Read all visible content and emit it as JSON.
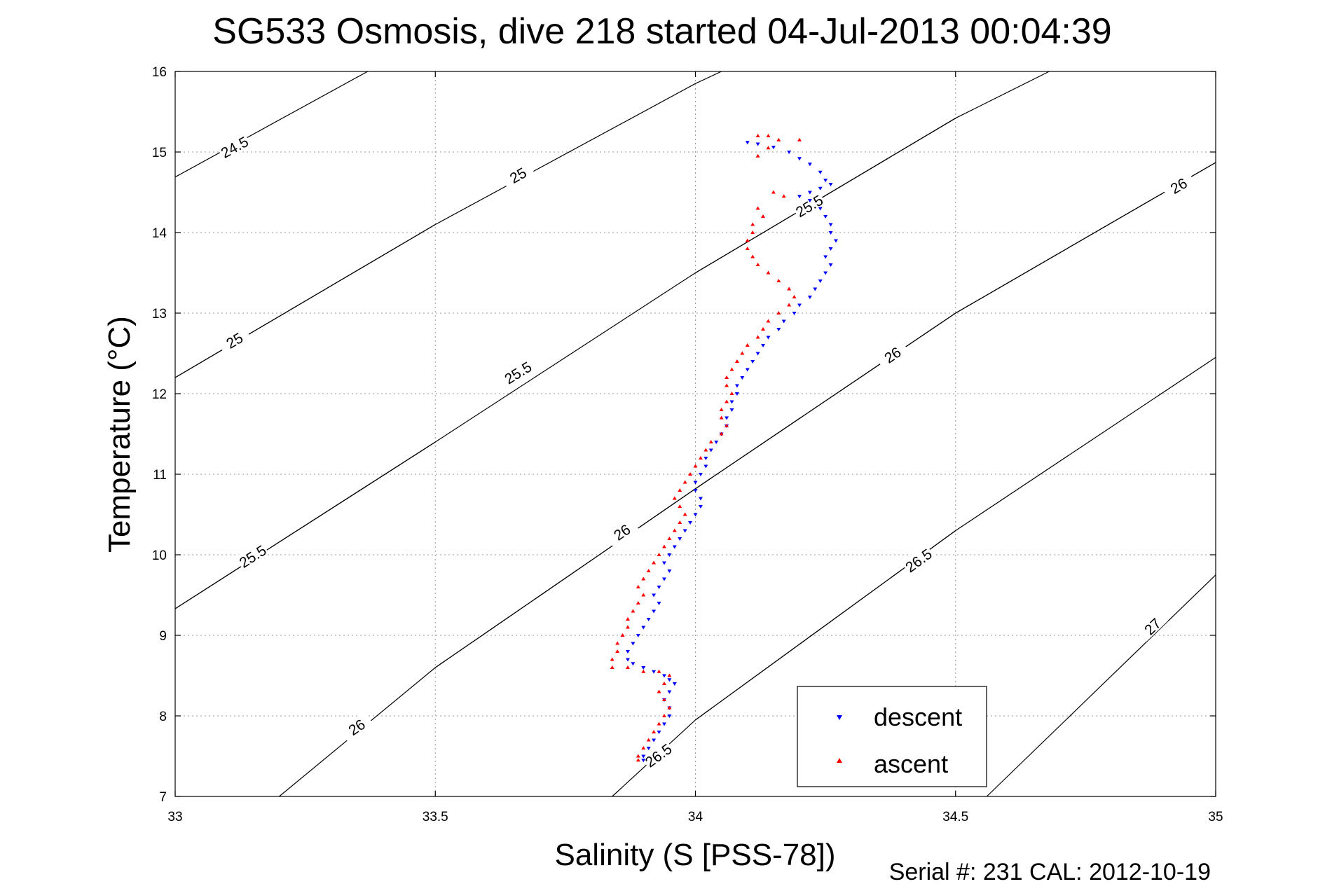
{
  "chart_data": {
    "type": "scatter",
    "title": "SG533 Osmosis, dive 218 started 04-Jul-2013 00:04:39",
    "xlabel": "Salinity (S [PSS-78])",
    "ylabel": "Temperature (°C)",
    "xlim": [
      33,
      35
    ],
    "ylim": [
      7,
      16
    ],
    "xticks": [
      "33",
      "33.5",
      "34",
      "34.5",
      "35"
    ],
    "yticks": [
      "7",
      "8",
      "9",
      "10",
      "11",
      "12",
      "13",
      "14",
      "15",
      "16"
    ],
    "grid": true,
    "legend_position": "bottom-right",
    "footer": "Serial #: 231  CAL: 2012-10-19",
    "contours": [
      {
        "label": "24.5",
        "points": [
          [
            33.0,
            14.69
          ],
          [
            33.37,
            16.0
          ]
        ],
        "label_at": [
          33.115,
          15.05
        ]
      },
      {
        "label": "25",
        "points": [
          [
            33.0,
            12.2
          ],
          [
            33.5,
            14.1
          ],
          [
            34.0,
            15.85
          ],
          [
            34.05,
            16.0
          ]
        ],
        "label_at": [
          33.66,
          14.7
        ]
      },
      {
        "label": "25",
        "points": [
          [
            33.0,
            12.2
          ],
          [
            33.5,
            14.1
          ]
        ],
        "label_at": [
          33.115,
          12.65
        ]
      },
      {
        "label": "25.5",
        "points": [
          [
            33.0,
            9.33
          ],
          [
            33.5,
            11.4
          ],
          [
            34.0,
            13.5
          ],
          [
            34.5,
            15.42
          ],
          [
            34.68,
            16.0
          ]
        ],
        "label_at": [
          33.66,
          12.25
        ]
      },
      {
        "label": "25.5",
        "points": [
          [
            33.0,
            9.33
          ],
          [
            33.5,
            11.4
          ]
        ],
        "label_at": [
          33.15,
          9.97
        ]
      },
      {
        "label": "25.5",
        "points": [
          [
            34.0,
            13.5
          ],
          [
            34.5,
            15.42
          ]
        ],
        "label_at": [
          34.22,
          14.32
        ]
      },
      {
        "label": "26",
        "points": [
          [
            33.2,
            7.0
          ],
          [
            33.5,
            8.6
          ],
          [
            34.0,
            10.82
          ],
          [
            34.5,
            13.0
          ],
          [
            35.0,
            14.87
          ]
        ],
        "label_at": [
          33.35,
          7.85
        ]
      },
      {
        "label": "26",
        "points": [
          [
            33.5,
            8.6
          ],
          [
            34.0,
            10.82
          ]
        ],
        "label_at": [
          33.86,
          10.27
        ]
      },
      {
        "label": "26",
        "points": [
          [
            34.0,
            10.82
          ],
          [
            34.5,
            13.0
          ]
        ],
        "label_at": [
          34.38,
          12.47
        ]
      },
      {
        "label": "26",
        "points": [
          [
            34.5,
            13.0
          ],
          [
            35.0,
            14.87
          ]
        ],
        "label_at": [
          34.93,
          14.57
        ]
      },
      {
        "label": "26.5",
        "points": [
          [
            33.84,
            7.0
          ],
          [
            34.0,
            7.95
          ],
          [
            34.5,
            10.3
          ],
          [
            35.0,
            12.45
          ]
        ],
        "label_at": [
          33.93,
          7.5
        ]
      },
      {
        "label": "26.5",
        "points": [
          [
            34.0,
            7.95
          ],
          [
            34.5,
            10.3
          ]
        ],
        "label_at": [
          34.43,
          9.92
        ]
      },
      {
        "label": "27",
        "points": [
          [
            34.56,
            7.0
          ],
          [
            35.0,
            9.75
          ]
        ],
        "label_at": [
          34.88,
          9.1
        ]
      }
    ],
    "series": [
      {
        "name": "descent",
        "color": "#0000ff",
        "marker": "triangle-down",
        "points": [
          [
            34.1,
            15.12
          ],
          [
            34.12,
            15.1
          ],
          [
            34.15,
            15.06
          ],
          [
            34.18,
            15.0
          ],
          [
            34.2,
            14.92
          ],
          [
            34.22,
            14.85
          ],
          [
            34.24,
            14.75
          ],
          [
            34.25,
            14.65
          ],
          [
            34.26,
            14.6
          ],
          [
            34.24,
            14.55
          ],
          [
            34.22,
            14.5
          ],
          [
            34.2,
            14.45
          ],
          [
            34.22,
            14.4
          ],
          [
            34.24,
            14.3
          ],
          [
            34.25,
            14.2
          ],
          [
            34.26,
            14.1
          ],
          [
            34.26,
            14.0
          ],
          [
            34.27,
            13.9
          ],
          [
            34.26,
            13.8
          ],
          [
            34.25,
            13.7
          ],
          [
            34.26,
            13.6
          ],
          [
            34.25,
            13.5
          ],
          [
            34.24,
            13.4
          ],
          [
            34.23,
            13.3
          ],
          [
            34.22,
            13.2
          ],
          [
            34.2,
            13.1
          ],
          [
            34.19,
            13.0
          ],
          [
            34.17,
            12.9
          ],
          [
            34.16,
            12.8
          ],
          [
            34.14,
            12.7
          ],
          [
            34.13,
            12.6
          ],
          [
            34.12,
            12.5
          ],
          [
            34.11,
            12.4
          ],
          [
            34.1,
            12.3
          ],
          [
            34.09,
            12.2
          ],
          [
            34.08,
            12.1
          ],
          [
            34.08,
            12.0
          ],
          [
            34.07,
            11.9
          ],
          [
            34.07,
            11.8
          ],
          [
            34.06,
            11.7
          ],
          [
            34.06,
            11.6
          ],
          [
            34.05,
            11.5
          ],
          [
            34.04,
            11.4
          ],
          [
            34.03,
            11.3
          ],
          [
            34.02,
            11.2
          ],
          [
            34.02,
            11.1
          ],
          [
            34.01,
            11.0
          ],
          [
            34.0,
            10.9
          ],
          [
            34.0,
            10.8
          ],
          [
            34.01,
            10.7
          ],
          [
            34.01,
            10.6
          ],
          [
            34.0,
            10.5
          ],
          [
            33.99,
            10.4
          ],
          [
            33.98,
            10.3
          ],
          [
            33.97,
            10.2
          ],
          [
            33.96,
            10.1
          ],
          [
            33.95,
            10.0
          ],
          [
            33.94,
            9.9
          ],
          [
            33.95,
            9.8
          ],
          [
            33.94,
            9.7
          ],
          [
            33.93,
            9.6
          ],
          [
            33.92,
            9.5
          ],
          [
            33.93,
            9.4
          ],
          [
            33.92,
            9.3
          ],
          [
            33.91,
            9.2
          ],
          [
            33.9,
            9.1
          ],
          [
            33.89,
            9.0
          ],
          [
            33.88,
            8.9
          ],
          [
            33.87,
            8.8
          ],
          [
            33.87,
            8.7
          ],
          [
            33.88,
            8.65
          ],
          [
            33.9,
            8.6
          ],
          [
            33.92,
            8.55
          ],
          [
            33.94,
            8.5
          ],
          [
            33.95,
            8.45
          ],
          [
            33.96,
            8.4
          ],
          [
            33.95,
            8.3
          ],
          [
            33.94,
            8.2
          ],
          [
            33.95,
            8.1
          ],
          [
            33.95,
            8.0
          ],
          [
            33.94,
            7.9
          ],
          [
            33.93,
            7.8
          ],
          [
            33.92,
            7.7
          ],
          [
            33.91,
            7.6
          ],
          [
            33.9,
            7.5
          ],
          [
            33.9,
            7.45
          ]
        ]
      },
      {
        "name": "ascent",
        "color": "#ff0000",
        "marker": "triangle-up",
        "points": [
          [
            34.12,
            15.2
          ],
          [
            34.14,
            15.2
          ],
          [
            34.16,
            15.15
          ],
          [
            34.2,
            15.15
          ],
          [
            34.14,
            15.05
          ],
          [
            34.12,
            14.95
          ],
          [
            34.15,
            14.5
          ],
          [
            34.17,
            14.45
          ],
          [
            34.12,
            14.3
          ],
          [
            34.13,
            14.2
          ],
          [
            34.11,
            14.1
          ],
          [
            34.11,
            14.0
          ],
          [
            34.1,
            13.9
          ],
          [
            34.1,
            13.8
          ],
          [
            34.11,
            13.7
          ],
          [
            34.12,
            13.6
          ],
          [
            34.14,
            13.5
          ],
          [
            34.16,
            13.4
          ],
          [
            34.18,
            13.3
          ],
          [
            34.19,
            13.2
          ],
          [
            34.18,
            13.1
          ],
          [
            34.16,
            13.0
          ],
          [
            34.14,
            12.9
          ],
          [
            34.13,
            12.8
          ],
          [
            34.12,
            12.7
          ],
          [
            34.1,
            12.6
          ],
          [
            34.09,
            12.5
          ],
          [
            34.08,
            12.4
          ],
          [
            34.07,
            12.3
          ],
          [
            34.06,
            12.2
          ],
          [
            34.06,
            12.1
          ],
          [
            34.07,
            12.0
          ],
          [
            34.06,
            11.9
          ],
          [
            34.05,
            11.8
          ],
          [
            34.05,
            11.7
          ],
          [
            34.06,
            11.6
          ],
          [
            34.05,
            11.5
          ],
          [
            34.03,
            11.4
          ],
          [
            34.02,
            11.3
          ],
          [
            34.01,
            11.2
          ],
          [
            34.0,
            11.1
          ],
          [
            33.99,
            11.0
          ],
          [
            33.98,
            10.9
          ],
          [
            33.97,
            10.8
          ],
          [
            33.96,
            10.7
          ],
          [
            33.97,
            10.6
          ],
          [
            33.98,
            10.5
          ],
          [
            33.97,
            10.4
          ],
          [
            33.96,
            10.3
          ],
          [
            33.95,
            10.2
          ],
          [
            33.94,
            10.1
          ],
          [
            33.93,
            10.0
          ],
          [
            33.92,
            9.9
          ],
          [
            33.91,
            9.8
          ],
          [
            33.9,
            9.7
          ],
          [
            33.89,
            9.6
          ],
          [
            33.9,
            9.5
          ],
          [
            33.89,
            9.4
          ],
          [
            33.88,
            9.3
          ],
          [
            33.87,
            9.2
          ],
          [
            33.87,
            9.1
          ],
          [
            33.86,
            9.0
          ],
          [
            33.85,
            8.9
          ],
          [
            33.85,
            8.8
          ],
          [
            33.84,
            8.7
          ],
          [
            33.84,
            8.6
          ],
          [
            33.87,
            8.6
          ],
          [
            33.9,
            8.55
          ],
          [
            33.93,
            8.55
          ],
          [
            33.95,
            8.5
          ],
          [
            33.94,
            8.4
          ],
          [
            33.93,
            8.3
          ],
          [
            33.94,
            8.2
          ],
          [
            33.95,
            8.1
          ],
          [
            33.94,
            8.0
          ],
          [
            33.93,
            7.9
          ],
          [
            33.92,
            7.8
          ],
          [
            33.91,
            7.7
          ],
          [
            33.9,
            7.6
          ],
          [
            33.89,
            7.5
          ],
          [
            33.89,
            7.45
          ]
        ]
      }
    ]
  }
}
